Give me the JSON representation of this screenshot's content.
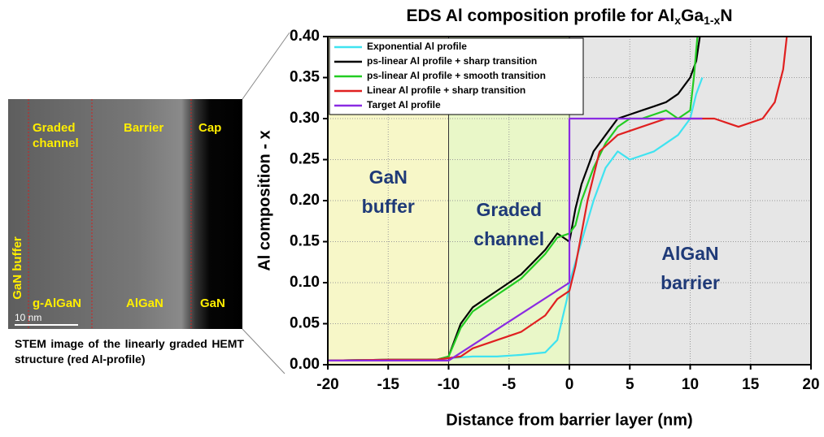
{
  "image": {
    "labels": {
      "top": [
        [
          "Graded",
          "channel"
        ],
        [
          "Barrier"
        ],
        [
          "Cap"
        ]
      ],
      "bottom": [
        "g-AlGaN",
        "AlGaN",
        "GaN"
      ],
      "side": "GaN buffer",
      "scale": "10 nm"
    },
    "caption": "STEM image of the linearly graded HEMT structure (red Al-profile)"
  },
  "chart_data": {
    "type": "line",
    "title": [
      "EDS Al composition profile for Al",
      "x",
      "Ga",
      "1-x",
      "N"
    ],
    "x_label": "Distance from barrier layer (nm)",
    "y_label": "Al composition - x",
    "xlim": [
      -20,
      20
    ],
    "ylim": [
      0,
      0.4
    ],
    "xticks": [
      -20,
      -15,
      -10,
      -5,
      0,
      5,
      10,
      15,
      20
    ],
    "yticks": [
      {
        "value": 0,
        "label": "0.00"
      },
      {
        "value": 0.05,
        "label": "0.05"
      },
      {
        "value": 0.1,
        "label": "0.10"
      },
      {
        "value": 0.15,
        "label": "0.15"
      },
      {
        "value": 0.2,
        "label": "0.20"
      },
      {
        "value": 0.25,
        "label": "0.25"
      },
      {
        "value": 0.3,
        "label": "0.30"
      },
      {
        "value": 0.35,
        "label": "0.35"
      },
      {
        "value": 0.4,
        "label": "0.40"
      }
    ],
    "grid": true,
    "regions": [
      {
        "from": -20,
        "to": -10,
        "color": "#f7f7c8",
        "label": [
          "GaN",
          "buffer"
        ]
      },
      {
        "from": -10,
        "to": 0,
        "color": "#e9f7c8",
        "label": [
          "Graded",
          "channel"
        ]
      },
      {
        "from": 0,
        "to": 20,
        "color": "#e6e6e6",
        "label": [
          "AlGaN",
          "barrier"
        ]
      }
    ],
    "series": [
      {
        "name": "Exponential Al profile",
        "color": "#3fe3f0",
        "x": [
          -20,
          -15,
          -11,
          -10,
          -8,
          -6,
          -4,
          -2,
          -1,
          -0.2,
          0,
          1,
          2,
          3,
          4,
          5,
          6,
          7,
          8,
          9,
          10,
          10.5,
          11
        ],
        "values": [
          0.005,
          0.006,
          0.006,
          0.008,
          0.01,
          0.01,
          0.012,
          0.015,
          0.03,
          0.08,
          0.1,
          0.15,
          0.2,
          0.24,
          0.26,
          0.25,
          0.255,
          0.26,
          0.27,
          0.28,
          0.3,
          0.33,
          0.35
        ]
      },
      {
        "name": "ps-linear Al profile + sharp transition",
        "color": "#000000",
        "x": [
          -20,
          -15,
          -11,
          -10,
          -9,
          -8,
          -7,
          -6,
          -5,
          -4,
          -3,
          -2,
          -1,
          0,
          0.5,
          1,
          1.5,
          2,
          3,
          4,
          5,
          6,
          7,
          8,
          9,
          10,
          10.5,
          10.8
        ],
        "values": [
          0.005,
          0.006,
          0.006,
          0.01,
          0.05,
          0.07,
          0.08,
          0.09,
          0.1,
          0.11,
          0.125,
          0.14,
          0.16,
          0.15,
          0.19,
          0.22,
          0.24,
          0.26,
          0.28,
          0.3,
          0.305,
          0.31,
          0.315,
          0.32,
          0.33,
          0.35,
          0.37,
          0.4
        ]
      },
      {
        "name": "ps-linear Al profile + smooth transition",
        "color": "#22cc22",
        "x": [
          -20,
          -15,
          -11,
          -10,
          -9,
          -8,
          -7,
          -6,
          -5,
          -4,
          -3,
          -2,
          -1,
          0,
          0.5,
          1,
          2,
          3,
          4,
          5,
          6,
          7,
          8,
          9,
          10,
          10.3,
          10.6
        ],
        "values": [
          0.005,
          0.006,
          0.006,
          0.01,
          0.045,
          0.065,
          0.075,
          0.085,
          0.095,
          0.105,
          0.12,
          0.135,
          0.155,
          0.16,
          0.17,
          0.2,
          0.24,
          0.27,
          0.29,
          0.3,
          0.3,
          0.305,
          0.31,
          0.3,
          0.31,
          0.35,
          0.4
        ]
      },
      {
        "name": "Linear Al profile + sharp transition",
        "color": "#e02020",
        "x": [
          -20,
          -15,
          -11,
          -10,
          -9,
          -8,
          -6,
          -4,
          -2,
          -1,
          0,
          0.5,
          1.5,
          2.5,
          4,
          6,
          8,
          10,
          12,
          14,
          16,
          17,
          17.7,
          18
        ],
        "values": [
          0.005,
          0.006,
          0.006,
          0.008,
          0.01,
          0.02,
          0.03,
          0.04,
          0.06,
          0.08,
          0.09,
          0.12,
          0.2,
          0.26,
          0.28,
          0.29,
          0.3,
          0.3,
          0.3,
          0.29,
          0.3,
          0.32,
          0.36,
          0.4
        ]
      },
      {
        "name": "Target Al profile",
        "color": "#8a2be2",
        "x": [
          -20,
          -10,
          0,
          0,
          11
        ],
        "values": [
          0.005,
          0.005,
          0.1,
          0.3,
          0.3
        ]
      }
    ]
  }
}
